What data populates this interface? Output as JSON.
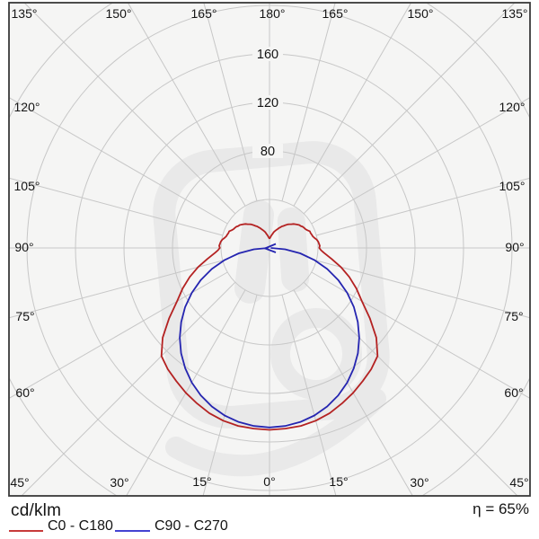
{
  "unit_label": "cd/klm",
  "efficiency_label": "η = 65%",
  "legend": [
    {
      "label": "C0 - C180",
      "color": "#c73a3a"
    },
    {
      "label": "C90 - C270",
      "color": "#4343d2"
    }
  ],
  "colors": {
    "curve_c0": "#b42222",
    "curve_c90": "#2525b0",
    "grid": "#c7c7c7",
    "plot_bg": "#f5f5f4",
    "border": "#3a3a3a",
    "text": "#141414",
    "watermark": "#e9e9e9"
  },
  "angle_labels": {
    "top": [
      "135°",
      "150°",
      "165°",
      "180°",
      "165°",
      "150°",
      "135°"
    ],
    "left": [
      "120°",
      "105°",
      "90°",
      "75°",
      "60°",
      "45°"
    ],
    "right": [
      "120°",
      "105°",
      "90°",
      "75°",
      "60°",
      "45°"
    ],
    "bottom": [
      "30°",
      "15°",
      "0°",
      "15°",
      "30°"
    ]
  },
  "ring_labels": [
    "80",
    "120",
    "160"
  ],
  "chart_data": {
    "type": "polar_photometric",
    "unit": "cd/klm",
    "efficiency_percent": 65,
    "angle_grid_step_deg": 15,
    "ring_values_cdklm": [
      40,
      80,
      120,
      160,
      200,
      240
    ],
    "labeled_rings_cdklm": [
      80,
      120,
      160
    ],
    "gamma_zero_direction": "down",
    "symmetric_about_vertical": true,
    "series": [
      {
        "name": "C0 - C180",
        "color": "#b42222",
        "gamma_deg": [
          0,
          5,
          10,
          15,
          20,
          25,
          30,
          35,
          40,
          45,
          50,
          55,
          60,
          65,
          70,
          75,
          80,
          85,
          87.5,
          90,
          92.5,
          95,
          97.5,
          100,
          102.5,
          105,
          107.5,
          110,
          112.5,
          115,
          117.5,
          120,
          122.5,
          125,
          127.5,
          130,
          132.5,
          135,
          137.5,
          140,
          142.5,
          145,
          147.5,
          150,
          152.5,
          155,
          157.5,
          160,
          162.5,
          165,
          167.5,
          170,
          172.5,
          175,
          177.5,
          180
        ],
        "values_cdklm": [
          150,
          149.5,
          149,
          147.5,
          145,
          141.5,
          138,
          134,
          130.5,
          126,
          115,
          101,
          88,
          79,
          70,
          61,
          52,
          45,
          42.5,
          41,
          41.5,
          41,
          40.5,
          39.5,
          38,
          37,
          36.5,
          36,
          36,
          34.5,
          33.5,
          33,
          32.5,
          31.5,
          31,
          30,
          29,
          28,
          26.5,
          25.5,
          24.5,
          23,
          21.5,
          20.5,
          19,
          18,
          16.5,
          15.5,
          14.5,
          13.5,
          12,
          11,
          10,
          9,
          8.2,
          7.5
        ]
      },
      {
        "name": "C90 - C270",
        "color": "#2525b0",
        "gamma_deg": [
          0,
          5,
          10,
          15,
          20,
          25,
          30,
          35,
          40,
          45,
          50,
          55,
          60,
          65,
          70,
          75,
          80,
          85,
          90
        ],
        "values_cdklm": [
          148,
          147.4,
          145.8,
          143,
          139.1,
          134.1,
          128.2,
          121.2,
          113.4,
          104.7,
          95.1,
          84.9,
          74,
          62.5,
          50.6,
          38.3,
          25.7,
          12.9,
          1
        ]
      }
    ]
  }
}
